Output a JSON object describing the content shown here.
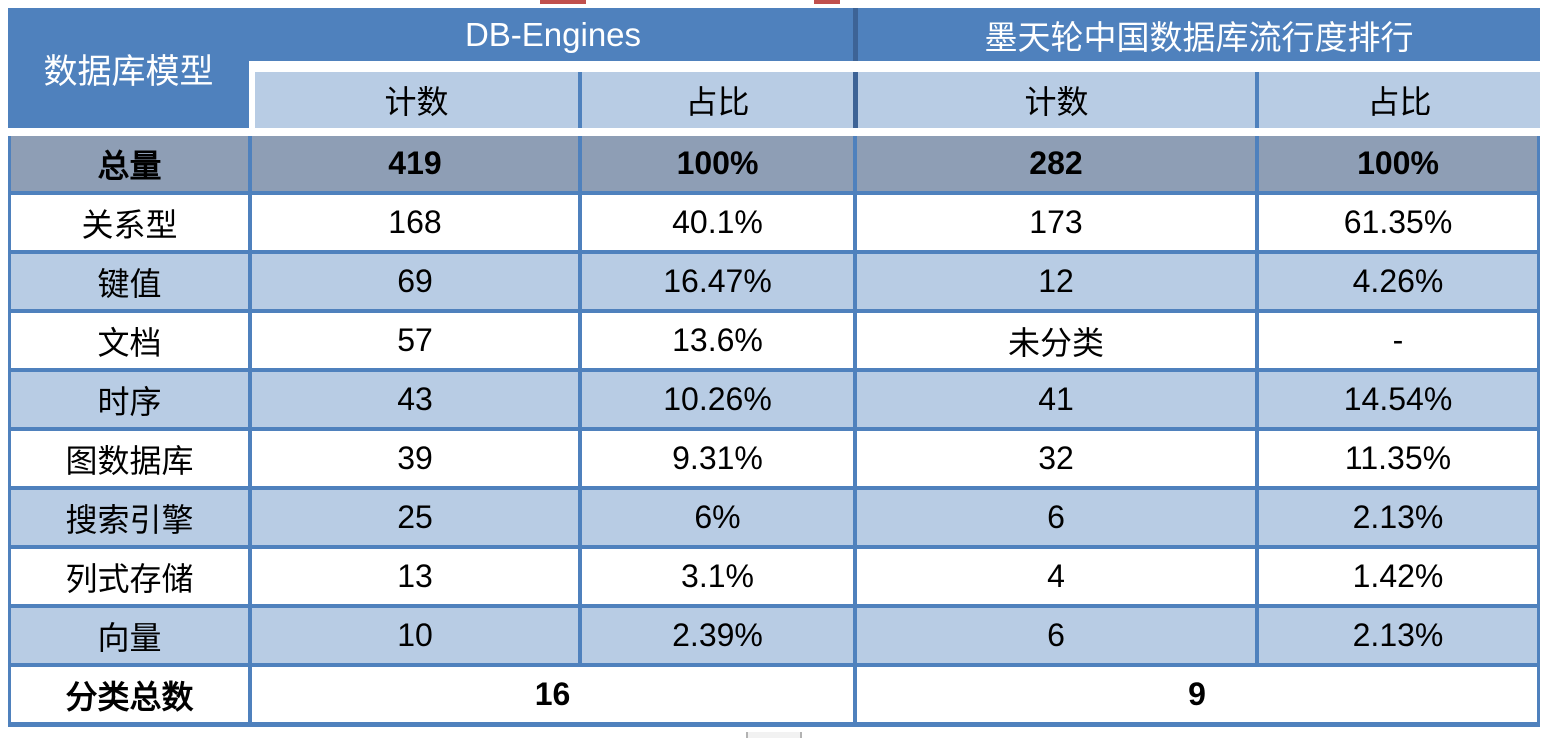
{
  "chart_data": {
    "type": "table",
    "corner_header": "数据库模型",
    "column_groups": [
      {
        "label": "DB-Engines",
        "sub_columns": [
          "计数",
          "占比"
        ]
      },
      {
        "label": "墨天轮中国数据库流行度排行",
        "sub_columns": [
          "计数",
          "占比"
        ]
      }
    ],
    "total_row": {
      "label": "总量",
      "values": [
        "419",
        "100%",
        "282",
        "100%"
      ]
    },
    "rows": [
      {
        "label": "关系型",
        "values": [
          "168",
          "40.1%",
          "173",
          "61.35%"
        ]
      },
      {
        "label": "键值",
        "values": [
          "69",
          "16.47%",
          "12",
          "4.26%"
        ]
      },
      {
        "label": "文档",
        "values": [
          "57",
          "13.6%",
          "未分类",
          "-"
        ]
      },
      {
        "label": "时序",
        "values": [
          "43",
          "10.26%",
          "41",
          "14.54%"
        ]
      },
      {
        "label": "图数据库",
        "values": [
          "39",
          "9.31%",
          "32",
          "11.35%"
        ]
      },
      {
        "label": "搜索引擎",
        "values": [
          "25",
          "6%",
          "6",
          "2.13%"
        ]
      },
      {
        "label": "列式存储",
        "values": [
          "13",
          "3.1%",
          "4",
          "1.42%"
        ]
      },
      {
        "label": "向量",
        "values": [
          "10",
          "2.39%",
          "6",
          "2.13%"
        ]
      }
    ],
    "footer_row": {
      "label": "分类总数",
      "values": [
        "16",
        "9"
      ]
    }
  },
  "colors": {
    "header_blue": "#4F81BD",
    "light_blue": "#B8CCE4",
    "total_row_gray": "#8E9EB5",
    "grid_blue": "#4F81BD",
    "dark_divider": "#3D6396",
    "artifact_red": "#C0504D",
    "text_on_header": "#FFFFFF",
    "text_body": "#000000"
  }
}
